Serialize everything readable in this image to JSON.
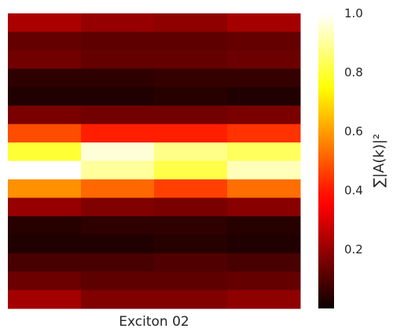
{
  "chart_data": {
    "type": "heatmap",
    "title": "",
    "xlabel": "Exciton 02",
    "ylabel": "",
    "colorbar_label": "∑|A(k)|²",
    "colormap": "hot",
    "vmin": 0.0,
    "vmax": 1.0,
    "colorbar_ticks": [
      0.2,
      0.4,
      0.6,
      0.8,
      1.0
    ],
    "colorbar_tick_labels": [
      "0.2",
      "0.4",
      "0.6",
      "0.8",
      "1.0"
    ],
    "n_rows": 16,
    "n_cols": 4,
    "grid": false,
    "legend": "none",
    "values": [
      [
        0.23,
        0.2,
        0.19,
        0.22
      ],
      [
        0.13,
        0.12,
        0.12,
        0.13
      ],
      [
        0.15,
        0.13,
        0.13,
        0.14
      ],
      [
        0.05,
        0.05,
        0.06,
        0.06
      ],
      [
        0.03,
        0.03,
        0.04,
        0.03
      ],
      [
        0.16,
        0.15,
        0.15,
        0.16
      ],
      [
        0.48,
        0.41,
        0.41,
        0.44
      ],
      [
        0.8,
        0.96,
        0.88,
        0.84
      ],
      [
        1.0,
        0.9,
        0.82,
        0.93
      ],
      [
        0.58,
        0.52,
        0.46,
        0.53
      ],
      [
        0.2,
        0.17,
        0.16,
        0.18
      ],
      [
        0.04,
        0.05,
        0.05,
        0.04
      ],
      [
        0.03,
        0.03,
        0.04,
        0.03
      ],
      [
        0.09,
        0.09,
        0.1,
        0.09
      ],
      [
        0.14,
        0.12,
        0.12,
        0.13
      ],
      [
        0.22,
        0.17,
        0.17,
        0.19
      ]
    ]
  }
}
